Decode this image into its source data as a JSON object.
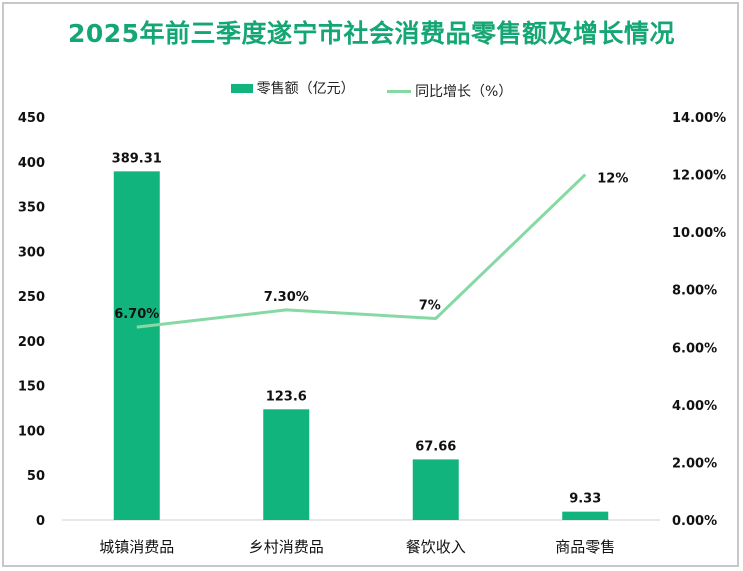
{
  "title": "2025年前三季度遂宁市社会消费品零售额及增长情况",
  "legend": {
    "bar_label": "零售额（亿元）",
    "line_label": "同比增长（%）"
  },
  "colors": {
    "title": "#14a673",
    "bar": "#10b47c",
    "line": "#86d9a4",
    "axis": "#d0d0d0",
    "text": "#111111"
  },
  "chart_data": {
    "type": "bar+line",
    "title": "2025年前三季度遂宁市社会消费品零售额及增长情况",
    "categories": [
      "城镇消费品",
      "乡村消费品",
      "餐饮收入",
      "商品零售"
    ],
    "series": [
      {
        "name": "零售额（亿元）",
        "type": "bar",
        "axis": "left",
        "values": [
          389.31,
          123.6,
          67.66,
          9.33
        ],
        "labels": [
          "389.31",
          "123.6",
          "67.66",
          "9.33"
        ]
      },
      {
        "name": "同比增长（%）",
        "type": "line",
        "axis": "right",
        "values": [
          6.7,
          7.3,
          7.0,
          12.0
        ],
        "labels": [
          "6.70%",
          "7.30%",
          "7%",
          "12%"
        ]
      }
    ],
    "left_axis": {
      "min": 0,
      "max": 450,
      "ticks": [
        "0",
        "50",
        "100",
        "150",
        "200",
        "250",
        "300",
        "350",
        "400",
        "450"
      ]
    },
    "right_axis": {
      "min": 0,
      "max": 14,
      "ticks": [
        "0.00%",
        "2.00%",
        "4.00%",
        "6.00%",
        "8.00%",
        "10.00%",
        "12.00%",
        "14.00%"
      ]
    },
    "grid": false,
    "legend_position": "top"
  }
}
